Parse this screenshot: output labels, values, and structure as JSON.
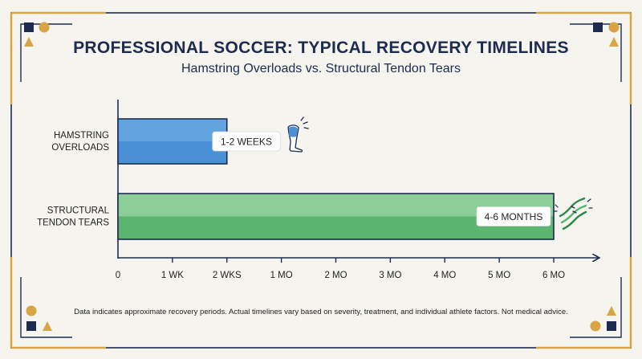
{
  "colors": {
    "navy": "#1d2b4f",
    "gold": "#d9a444",
    "blue_bar": "#4a90d4",
    "green_bar": "#59b470"
  },
  "chart_data": {
    "type": "bar",
    "orientation": "horizontal",
    "title": "PROFESSIONAL SOCCER: TYPICAL RECOVERY TIMELINES",
    "subtitle": "Hamstring Overloads vs. Structural Tendon Tears",
    "categories": [
      [
        "HAMSTRING",
        "OVERLOADS"
      ],
      [
        "STRUCTURAL",
        "TENDON TEARS"
      ]
    ],
    "bars": [
      {
        "start": 0,
        "end": 2,
        "label": "1-2 WEEKS",
        "icon": "leg-pain-icon"
      },
      {
        "start": 0,
        "end": 8,
        "label": "4-6 MONTHS",
        "icon": "torn-tendon-icon"
      }
    ],
    "x_ticks": [
      "0",
      "1 WK",
      "2 WKS",
      "1 MO",
      "2 MO",
      "3 MO",
      "4 MO",
      "5 MO",
      "6 MO"
    ],
    "x_scale": "ordinal",
    "grid": false,
    "legend": "none"
  },
  "footnote": "Data indicates approximate recovery periods. Actual timelines vary based on severity, treatment, and individual athlete factors. Not medical advice."
}
